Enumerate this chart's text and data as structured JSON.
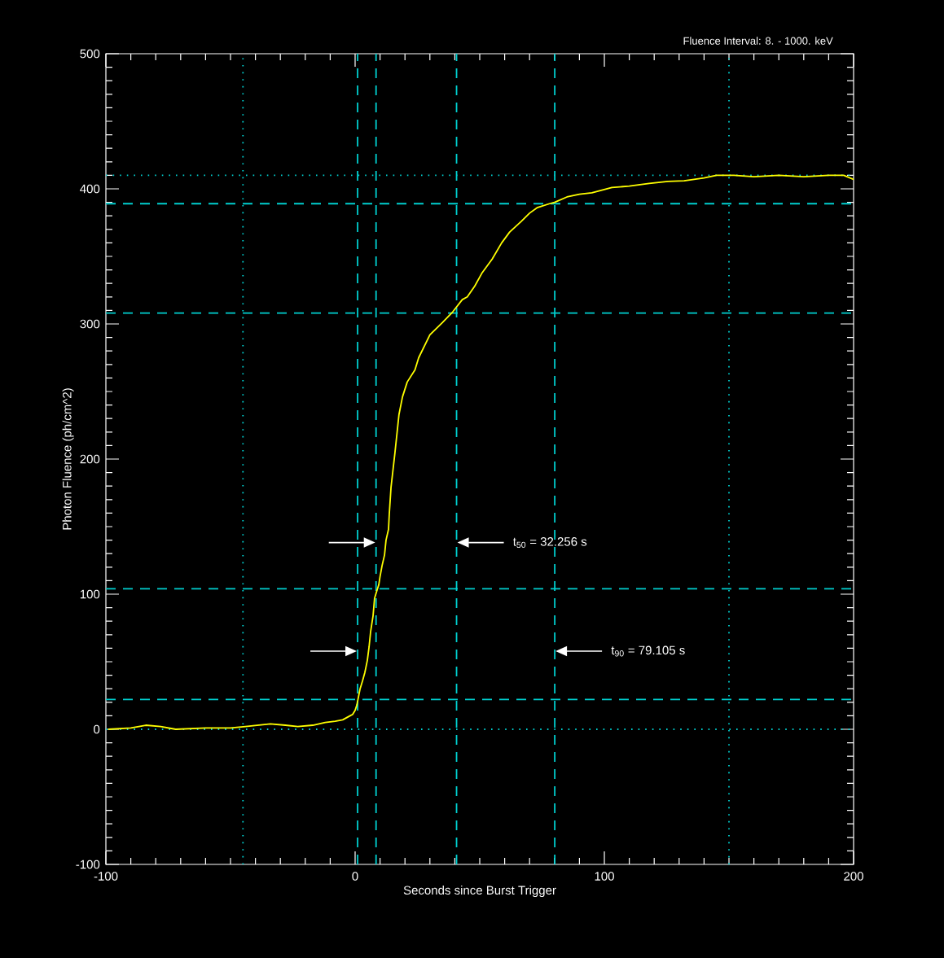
{
  "chart_data": {
    "type": "line",
    "title": "Fluence Interval: 8. - 1000. keV",
    "xlabel": "Seconds since Burst Trigger",
    "ylabel": "Photon Fluence (ph/cm^2)",
    "xlim": [
      -100,
      200
    ],
    "ylim": [
      -100,
      500
    ],
    "xticks": [
      -100,
      0,
      100,
      200
    ],
    "yticks": [
      -100,
      0,
      100,
      200,
      300,
      400,
      500
    ],
    "series": [
      {
        "color": "#ffff00",
        "x": [
          -99,
          -90,
          -84,
          -78,
          -72,
          -60,
          -50,
          -44,
          -34,
          -28,
          -23,
          -17,
          -12,
          -8,
          -5,
          -2,
          -1,
          0,
          0.7,
          2,
          3,
          3.9,
          4.9,
          5.6,
          6.2,
          7.2,
          7.8,
          8.8,
          9.5,
          10,
          10.8,
          11.8,
          12.4,
          13.4,
          13.7,
          14.4,
          16,
          17.6,
          19,
          20.9,
          24,
          25.5,
          30,
          35,
          39.2,
          43,
          45,
          48,
          51,
          55,
          58.8,
          62,
          66.7,
          70,
          73,
          78,
          80,
          85,
          90,
          95,
          103,
          110,
          118,
          125.5,
          132,
          140,
          145,
          152,
          160,
          170,
          180,
          190,
          196,
          200
        ],
        "values": [
          0,
          1,
          3,
          2,
          0,
          1,
          1,
          2,
          4,
          3,
          2,
          3,
          5,
          6,
          7,
          10,
          11,
          14,
          18,
          30,
          36,
          42,
          51,
          61,
          72,
          84,
          97,
          103,
          107,
          113,
          121,
          129,
          140,
          148,
          159,
          179,
          205,
          233,
          246,
          257,
          266,
          275,
          292,
          301,
          309,
          318,
          320,
          328,
          338,
          348,
          360,
          368,
          376,
          382,
          386,
          389,
          390,
          394,
          396,
          397,
          401,
          402,
          404,
          405.5,
          406,
          408,
          410,
          410,
          409,
          410,
          409,
          410,
          410,
          407
        ]
      }
    ],
    "ref_lines": [
      {
        "axis": "x",
        "value": 1.0,
        "color": "#00d0d0",
        "line_style": "dashed"
      },
      {
        "axis": "x",
        "value": 8.4,
        "color": "#00d0d0",
        "line_style": "dashed"
      },
      {
        "axis": "x",
        "value": 40.7,
        "color": "#00d0d0",
        "line_style": "dashed"
      },
      {
        "axis": "x",
        "value": 80.1,
        "color": "#00d0d0",
        "line_style": "dashed"
      },
      {
        "axis": "x",
        "value": -45,
        "color": "#00d0d0",
        "line_style": "dotted"
      },
      {
        "axis": "x",
        "value": 150,
        "color": "#00d0d0",
        "line_style": "dotted"
      },
      {
        "axis": "y",
        "value": 22,
        "color": "#00d0d0",
        "line_style": "dashed"
      },
      {
        "axis": "y",
        "value": 104,
        "color": "#00d0d0",
        "line_style": "dashed"
      },
      {
        "axis": "y",
        "value": 308,
        "color": "#00d0d0",
        "line_style": "dashed"
      },
      {
        "axis": "y",
        "value": 389,
        "color": "#00d0d0",
        "line_style": "dashed"
      },
      {
        "axis": "y",
        "value": 0,
        "color": "#00d0d0",
        "line_style": "dotted"
      },
      {
        "axis": "y",
        "value": 410,
        "color": "#00d0d0",
        "line_style": "dotted"
      }
    ],
    "annotations": [
      "t$_{50}$ = 32.256 s",
      "t$_{90}$ = 79.105 s"
    ]
  }
}
